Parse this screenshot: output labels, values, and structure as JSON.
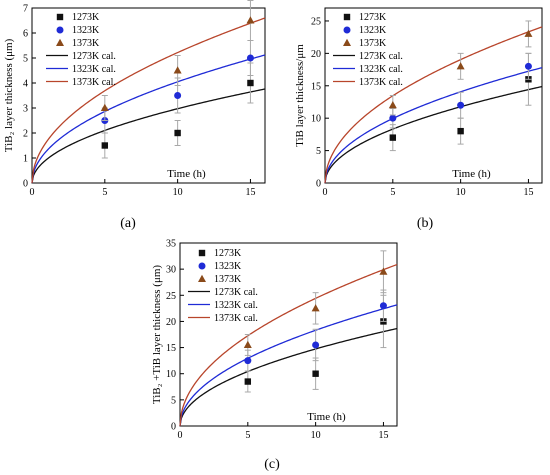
{
  "colors": {
    "1273": "#111111",
    "1323": "#1f2bd6",
    "1373": "#b8452b",
    "1373_marker": "#8a4a1a",
    "errorbar": "#a8a8a8",
    "axis": "#000000"
  },
  "chart_data": [
    {
      "type": "scatter",
      "panel_label": "(a)",
      "xlabel": "Time (h)",
      "ylabel": "TiB₂ layer thickness (μm)",
      "xlim": [
        0,
        16
      ],
      "ylim": [
        0,
        7
      ],
      "xticks": [
        0,
        5,
        10,
        15
      ],
      "yticks": [
        0,
        1,
        2,
        3,
        4,
        5,
        6,
        7
      ],
      "legend_position": "top-left",
      "series": [
        {
          "name": "1273K",
          "marker": "square",
          "color_key": "1273",
          "x": [
            5,
            10,
            15
          ],
          "y": [
            1.5,
            2.0,
            4.0
          ],
          "err": [
            0.5,
            0.5,
            0.8
          ]
        },
        {
          "name": "1323K",
          "marker": "circle",
          "color_key": "1323",
          "x": [
            5,
            10,
            15
          ],
          "y": [
            2.5,
            3.5,
            5.0
          ],
          "err": [
            0.5,
            0.7,
            0.7
          ]
        },
        {
          "name": "1373K",
          "marker": "triangle",
          "color_key": "1373_marker",
          "x": [
            5,
            10,
            15
          ],
          "y": [
            3.0,
            4.5,
            6.5
          ],
          "err": [
            0.5,
            0.6,
            0.8
          ]
        }
      ],
      "fits": [
        {
          "name": "1273K cal.",
          "color_key": "1273",
          "k": 0.94
        },
        {
          "name": "1323K cal.",
          "color_key": "1323",
          "k": 1.28
        },
        {
          "name": "1373K cal.",
          "color_key": "1373",
          "k": 1.65
        }
      ]
    },
    {
      "type": "scatter",
      "panel_label": "(b)",
      "xlabel": "Time (h)",
      "ylabel": "TiB layer thickness/μm",
      "xlim": [
        0,
        16
      ],
      "ylim": [
        0,
        27
      ],
      "xticks": [
        0,
        5,
        10,
        15
      ],
      "yticks": [
        0,
        5,
        10,
        15,
        20,
        25
      ],
      "legend_position": "top-left",
      "series": [
        {
          "name": "1273K",
          "marker": "square",
          "color_key": "1273",
          "x": [
            5,
            10,
            15
          ],
          "y": [
            7,
            8,
            16
          ],
          "err": [
            2,
            2,
            4
          ]
        },
        {
          "name": "1323K",
          "marker": "circle",
          "color_key": "1323",
          "x": [
            5,
            10,
            15
          ],
          "y": [
            10,
            12,
            18
          ],
          "err": [
            1.5,
            2,
            2
          ]
        },
        {
          "name": "1373K",
          "marker": "triangle",
          "color_key": "1373_marker",
          "x": [
            5,
            10,
            15
          ],
          "y": [
            12,
            18,
            23
          ],
          "err": [
            1.5,
            2,
            2
          ]
        }
      ],
      "fits": [
        {
          "name": "1273K cal.",
          "color_key": "1273",
          "k": 3.72
        },
        {
          "name": "1323K cal.",
          "color_key": "1323",
          "k": 4.45
        },
        {
          "name": "1373K cal.",
          "color_key": "1373",
          "k": 6.02
        }
      ]
    },
    {
      "type": "scatter",
      "panel_label": "(c)",
      "xlabel": "Time (h)",
      "ylabel": "TiB₂ +TiB layer thickness (μm)",
      "xlim": [
        0,
        16
      ],
      "ylim": [
        0,
        35
      ],
      "xticks": [
        0,
        5,
        10,
        15
      ],
      "yticks": [
        0,
        5,
        10,
        15,
        20,
        25,
        30,
        35
      ],
      "legend_position": "top-left",
      "series": [
        {
          "name": "1273K",
          "marker": "square",
          "color_key": "1273",
          "x": [
            5,
            10,
            15
          ],
          "y": [
            8.5,
            10,
            20
          ],
          "err": [
            2,
            3,
            5
          ]
        },
        {
          "name": "1323K",
          "marker": "circle",
          "color_key": "1323",
          "x": [
            5,
            10,
            15
          ],
          "y": [
            12.5,
            15.5,
            23
          ],
          "err": [
            2,
            3,
            3
          ]
        },
        {
          "name": "1373K",
          "marker": "triangle",
          "color_key": "1373_marker",
          "x": [
            5,
            10,
            15
          ],
          "y": [
            15.5,
            22.5,
            29.5
          ],
          "err": [
            2,
            3,
            4
          ]
        }
      ],
      "fits": [
        {
          "name": "1273K cal.",
          "color_key": "1273",
          "k": 4.66
        },
        {
          "name": "1323K cal.",
          "color_key": "1323",
          "k": 5.79
        },
        {
          "name": "1373K cal.",
          "color_key": "1373",
          "k": 7.72
        }
      ]
    }
  ]
}
